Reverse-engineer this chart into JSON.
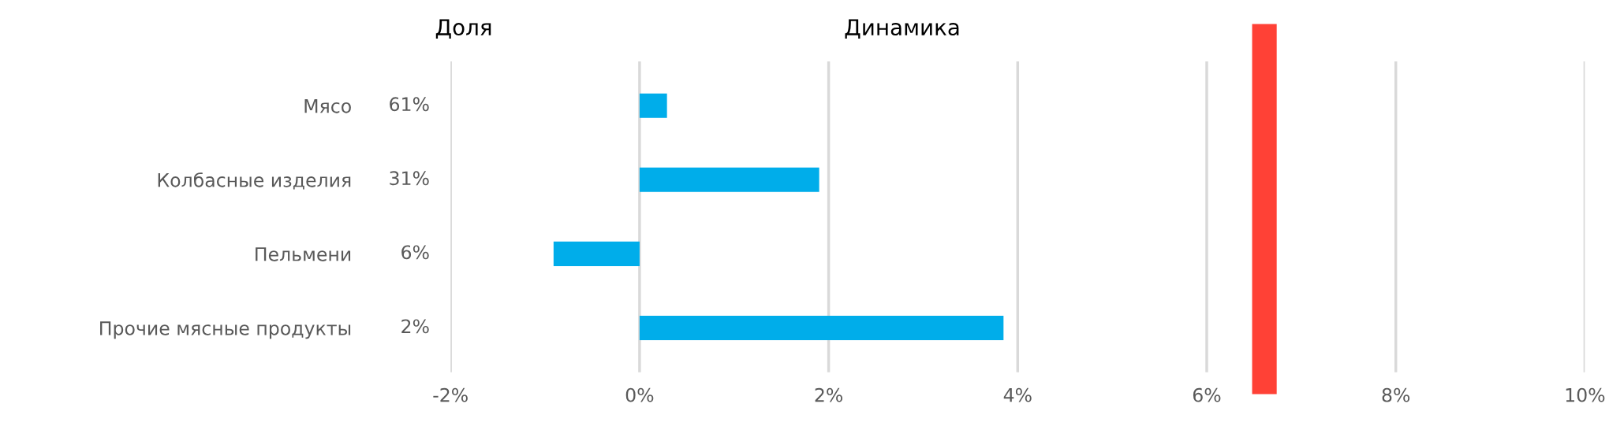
{
  "chart_data": {
    "type": "bar",
    "orientation": "horizontal",
    "title": "Динамика",
    "categories": [
      "Мясо",
      "Колбасные изделия",
      "Пельмени",
      "Прочие мясные продукты"
    ],
    "values": [
      0.29,
      1.9,
      -0.91,
      3.85
    ],
    "color": "#00adea",
    "xlim": [
      -2,
      10
    ],
    "xticks": [
      {
        "value": -2,
        "label": "-2%"
      },
      {
        "value": 0,
        "label": "0%"
      },
      {
        "value": 2,
        "label": "2%"
      },
      {
        "value": 4,
        "label": "4%"
      },
      {
        "value": 6,
        "label": "6%"
      },
      {
        "value": 8,
        "label": "8%"
      },
      {
        "value": 10,
        "label": "10%"
      }
    ],
    "grid": "x",
    "bands": [
      {
        "axis": "x",
        "from": 6.48,
        "to": 6.74,
        "color": "#ff4136"
      }
    ],
    "annotations": [
      "Доля",
      "61%",
      "31%",
      "6%",
      "2%"
    ]
  }
}
